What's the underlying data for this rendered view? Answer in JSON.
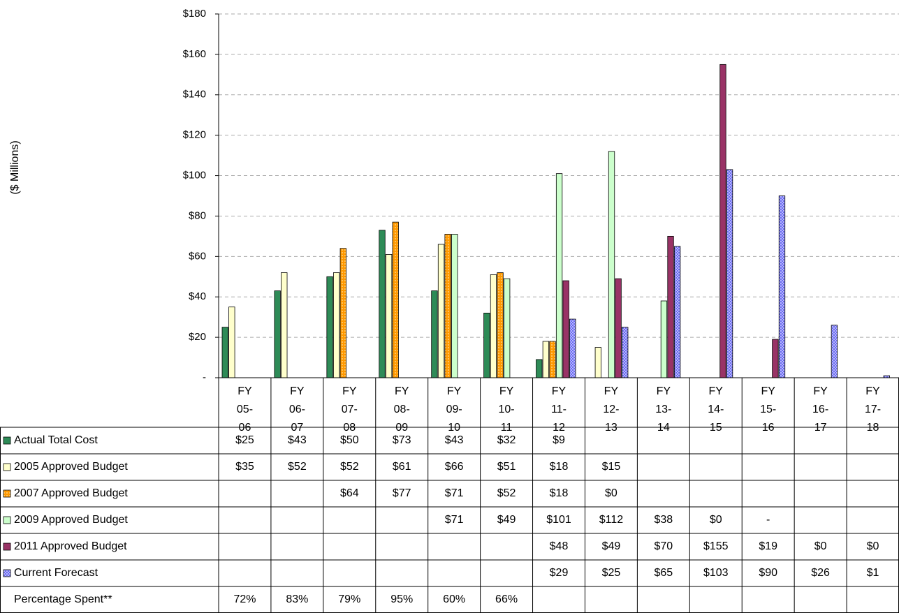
{
  "chart_data": {
    "type": "bar",
    "y_label": "($ Millions)",
    "categories": [
      "FY 05-06",
      "FY 06-07",
      "FY 07-08",
      "FY 08-09",
      "FY 09-10",
      "FY 10-11",
      "FY 11-12",
      "FY 12-13",
      "FY 13-14",
      "FY 14-15",
      "FY 15-16",
      "FY 16-17",
      "FY 17-18"
    ],
    "ylim": [
      0,
      180
    ],
    "yticks": [
      {
        "value": 0,
        "label": "-"
      },
      {
        "value": 20,
        "label": "$20"
      },
      {
        "value": 40,
        "label": "$40"
      },
      {
        "value": 60,
        "label": "$60"
      },
      {
        "value": 80,
        "label": "$80"
      },
      {
        "value": 100,
        "label": "$100"
      },
      {
        "value": 120,
        "label": "$120"
      },
      {
        "value": 140,
        "label": "$140"
      },
      {
        "value": 160,
        "label": "$160"
      },
      {
        "value": 180,
        "label": "$180"
      }
    ],
    "grid": true,
    "series": [
      {
        "name": "Actual Total Cost",
        "color": "#2e8b57",
        "values": [
          25,
          43,
          50,
          73,
          43,
          32,
          9,
          null,
          null,
          null,
          null,
          null,
          null
        ],
        "value_labels": [
          "$25",
          "$43",
          "$50",
          "$73",
          "$43",
          "$32",
          "$9",
          null,
          null,
          null,
          null,
          null,
          null
        ]
      },
      {
        "name": "2005 Approved Budget",
        "color": "#ffffcc",
        "values": [
          35,
          52,
          52,
          61,
          66,
          51,
          18,
          15,
          null,
          null,
          null,
          null,
          null
        ],
        "value_labels": [
          "$35",
          "$52",
          "$52",
          "$61",
          "$66",
          "$51",
          "$18",
          "$15",
          null,
          null,
          null,
          null,
          null
        ]
      },
      {
        "name": "2007 Approved Budget",
        "color": "#ff9900",
        "values": [
          null,
          null,
          64,
          77,
          71,
          52,
          18,
          0,
          null,
          null,
          null,
          null,
          null
        ],
        "value_labels": [
          null,
          null,
          "$64",
          "$77",
          "$71",
          "$52",
          "$18",
          "$0",
          null,
          null,
          null,
          null,
          null
        ]
      },
      {
        "name": "2009 Approved Budget",
        "color": "#ccffcc",
        "values": [
          null,
          null,
          null,
          null,
          71,
          49,
          101,
          112,
          38,
          0,
          0,
          null,
          null
        ],
        "value_labels": [
          null,
          null,
          null,
          null,
          "$71",
          "$49",
          "$101",
          "$112",
          "$38",
          "$0",
          "-",
          null,
          null
        ]
      },
      {
        "name": "2011 Approved Budget",
        "color": "#993366",
        "values": [
          null,
          null,
          null,
          null,
          null,
          null,
          48,
          49,
          70,
          155,
          19,
          0,
          0
        ],
        "value_labels": [
          null,
          null,
          null,
          null,
          null,
          null,
          "$48",
          "$49",
          "$70",
          "$155",
          "$19",
          "$0",
          "$0"
        ]
      },
      {
        "name": "Current Forecast",
        "color": "#6666ff",
        "values": [
          null,
          null,
          null,
          null,
          null,
          null,
          29,
          25,
          65,
          103,
          90,
          26,
          1
        ],
        "value_labels": [
          null,
          null,
          null,
          null,
          null,
          null,
          "$29",
          "$25",
          "$65",
          "$103",
          "$90",
          "$26",
          "$1"
        ]
      }
    ],
    "percentage_spent": {
      "name": "Percentage Spent**",
      "values": [
        72,
        83,
        79,
        95,
        60,
        66,
        null,
        null,
        null,
        null,
        null,
        null,
        null
      ],
      "value_labels": [
        "72%",
        "83%",
        "79%",
        "95%",
        "60%",
        "66%",
        null,
        null,
        null,
        null,
        null,
        null,
        null
      ]
    }
  }
}
